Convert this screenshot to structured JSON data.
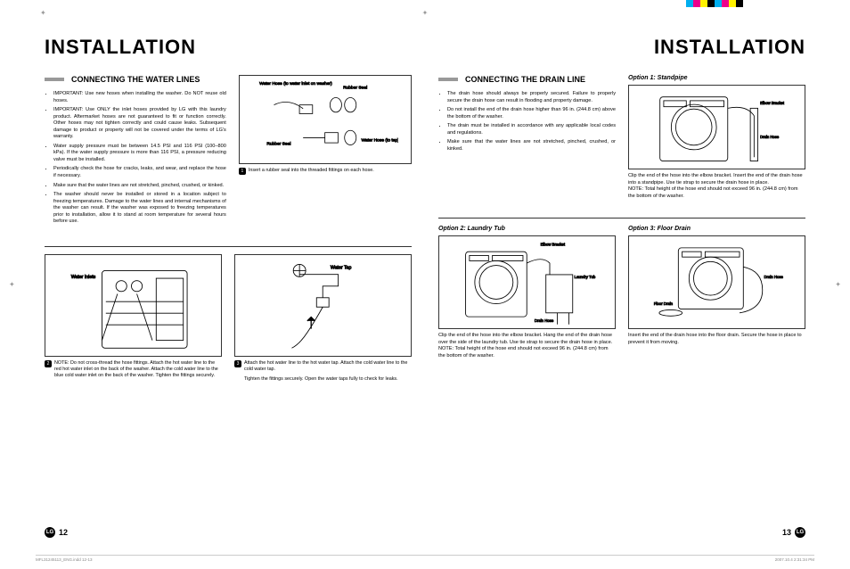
{
  "fontsize": {
    "title": 22,
    "section": 9,
    "body": 5.6,
    "caption": 5.4,
    "option": 7,
    "footer": 9
  },
  "colors": {
    "text": "#000000",
    "bar": "#999999",
    "border": "#333333",
    "meta": "#888888",
    "bg": "#ffffff"
  },
  "colorbar": [
    "#00aeef",
    "#ec008c",
    "#fff200",
    "#000000",
    "#00aeef",
    "#ec008c",
    "#fff200",
    "#000000"
  ],
  "left": {
    "title": "INSTALLATION",
    "section": "CONNECTING THE WATER LINES",
    "bullets": [
      "IMPORTANT: Use new hoses when installing the washer. Do NOT reuse old hoses.",
      "IMPORTANT: Use ONLY the inlet hoses provided by LG with this laundry product. Aftermarket hoses are not guaranteed to fit or function correctly. Other hoses may not tighten correctly and could cause leaks. Subsequent damage to product or property will not be covered under the terms of LG's warranty.",
      "Water supply pressure must be between 14.5 PSI and 116 PSI (100–800 kPa). If the water supply pressure is more than 116 PSI, a pressure reducing valve must be installed.",
      "Periodically check the hose for cracks, leaks, and wear, and replace the hose if necessary.",
      "Make sure that the water lines are not stretched, pinched, crushed, or kinked.",
      "The washer should never be installed or stored in a location subject to freezing temperatures. Damage to the water lines and internal mechanisms of the washer can result. If the washer was exposed to freezing temperatures prior to installation, allow it to stand at room temperature for several hours before use."
    ],
    "fig1": {
      "labels": [
        "Water Hose (to water inlet on washer)",
        "Rubber Seal",
        "Rubber Seal",
        "Water Hose (to tap)"
      ],
      "caption_num": "1",
      "caption": "Insert a rubber seal into the threaded fittings on each hose."
    },
    "fig2": {
      "label": "Water Inlets",
      "caption_num": "2",
      "caption": "NOTE: Do not cross-thread the hose fittings. Attach the hot water line to the red hot water inlet on the back of the washer. Attach the cold water line to the blue cold water inlet on the back of the washer. Tighten the fittings securely."
    },
    "fig3": {
      "label": "Water Tap",
      "caption_num": "3",
      "caption": "Attach the hot water line to the hot water tap. Attach the cold water line to the cold water tap.",
      "caption2": "Tighten the fittings securely. Open the water taps fully to check for leaks."
    },
    "page_num": "12"
  },
  "right": {
    "title": "INSTALLATION",
    "section": "CONNECTING THE DRAIN LINE",
    "bullets": [
      "The drain hose should always be properly secured. Failure to properly secure the drain hose can result in flooding and property damage.",
      "Do not install the end of the drain hose higher than 96 in. (244.8 cm) above the bottom of the washer.",
      "The drain must be installed in accordance with any applicable local codes and regulations.",
      "Make sure that the water lines are not stretched, pinched, crushed, or kinked."
    ],
    "opt1": {
      "title": "Option 1: Standpipe",
      "labels": [
        "Elbow Bracket",
        "Drain Hose"
      ],
      "caption": "Clip the end of the hose into the elbow bracket. Insert the end of the drain hose into a standpipe. Use tie strap to secure the drain hose in place.",
      "note": "NOTE: Total height of the hose end should not exceed 96 in. (244.8 cm) from the bottom of the washer."
    },
    "opt2": {
      "title": "Option 2: Laundry Tub",
      "labels": [
        "Elbow Bracket",
        "Laundry Tub",
        "Tie Strap",
        "Drain Hose"
      ],
      "caption": "Clip the end of the hose into the elbow bracket. Hang the end of the drain hose over the side of the laundry tub. Use tie strap to secure the drain hose in place.",
      "note": "NOTE: Total height of the hose end should not exceed 96 in. (244.8 cm) from the bottom of the washer."
    },
    "opt3": {
      "title": "Option 3: Floor Drain",
      "labels": [
        "Drain Hose",
        "Floor Drain"
      ],
      "caption": "Insert the end of the drain hose into the floor drain. Secure the hose in place to prevent it from moving."
    },
    "page_num": "13"
  },
  "meta": {
    "file": "MFL31245113_ENG.indd   12-13",
    "date": "2007.10.4   2:31:34 PM"
  }
}
